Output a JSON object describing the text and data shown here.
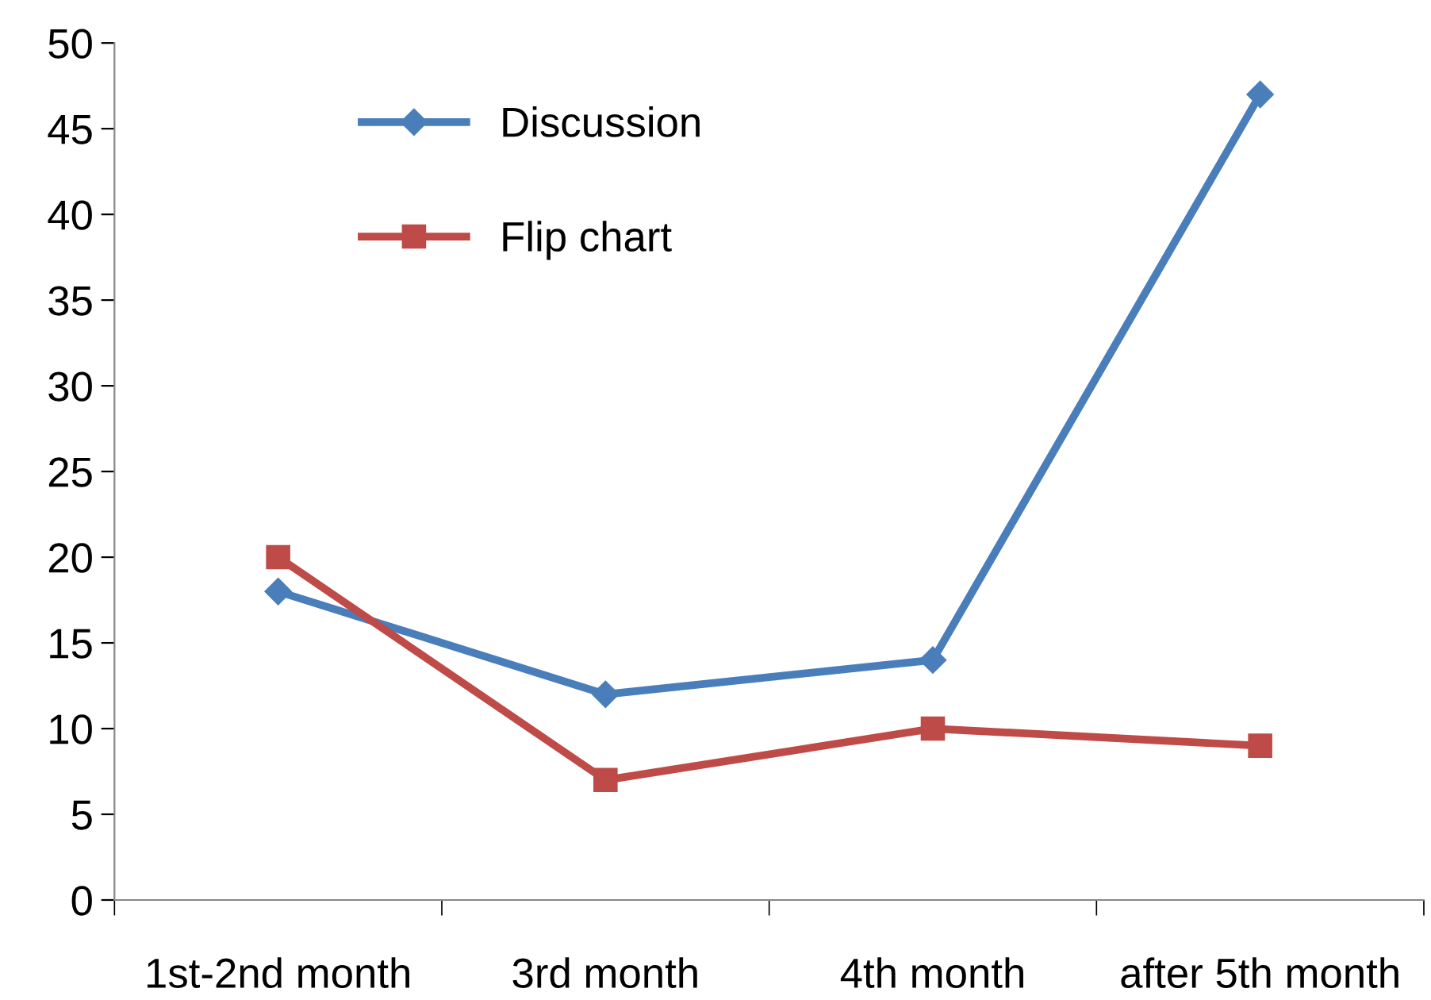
{
  "chart_data": {
    "type": "line",
    "categories": [
      "1st-2nd month",
      "3rd month",
      "4th month",
      "after 5th month"
    ],
    "series": [
      {
        "name": "Discussion",
        "color": "#4a7ebb",
        "values": [
          18,
          12,
          14,
          47
        ],
        "marker": "diamond"
      },
      {
        "name": "Flip chart",
        "color": "#be4b48",
        "values": [
          20,
          7,
          10,
          9
        ],
        "marker": "square"
      }
    ],
    "ylim": [
      0,
      50
    ],
    "yticks": [
      0,
      5,
      10,
      15,
      20,
      25,
      30,
      35,
      40,
      45,
      50
    ],
    "grid": false,
    "legend": "top left",
    "line_style": "solid"
  }
}
